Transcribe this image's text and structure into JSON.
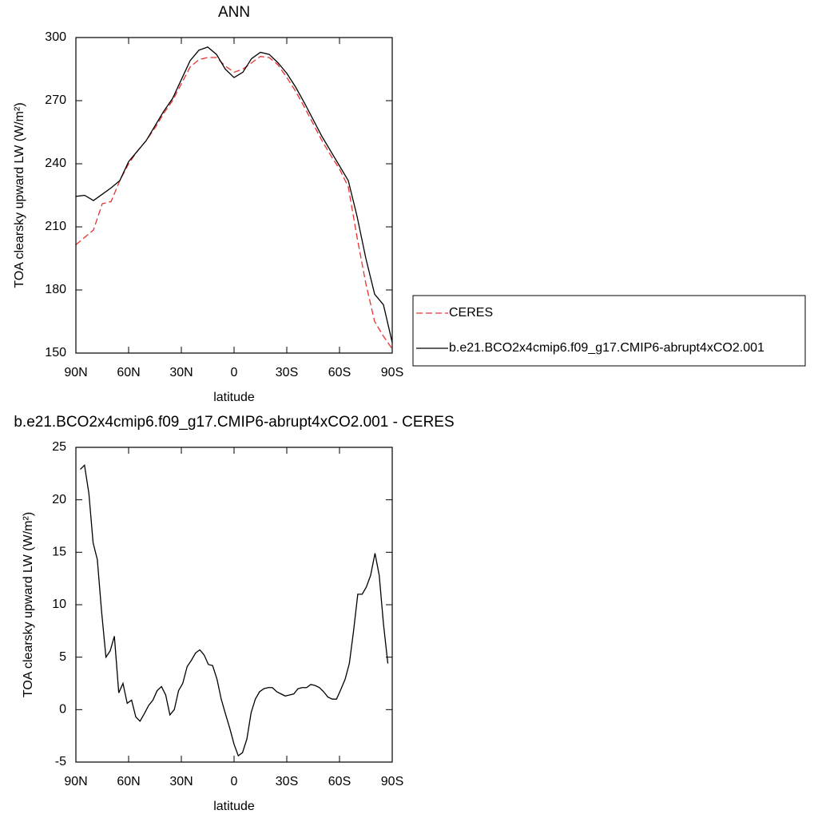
{
  "chart_data": [
    {
      "type": "line",
      "title": "ANN",
      "xlabel": "latitude",
      "ylabel": "TOA clearsky upward LW (W/m²)",
      "xlim": [
        90,
        -90
      ],
      "xticks": [
        {
          "value": 90,
          "label": "90N"
        },
        {
          "value": 60,
          "label": "60N"
        },
        {
          "value": 30,
          "label": "30N"
        },
        0,
        {
          "value": -30,
          "label": "30S"
        },
        {
          "value": -60,
          "label": "60S"
        },
        {
          "value": -90,
          "label": "90S"
        }
      ],
      "ylim": [
        150,
        300
      ],
      "yticks": [
        150,
        180,
        210,
        240,
        270,
        300
      ],
      "x": [
        90,
        85,
        80,
        75,
        70,
        65,
        60,
        55,
        50,
        45,
        40,
        35,
        30,
        25,
        20,
        15,
        10,
        5,
        0,
        -5,
        -10,
        -15,
        -20,
        -25,
        -30,
        -35,
        -40,
        -45,
        -50,
        -55,
        -60,
        -65,
        -70,
        -75,
        -80,
        -85,
        -90
      ],
      "legend": "right",
      "series": [
        {
          "name": "CERES",
          "color": "#e8312f",
          "dashed": true,
          "values": [
            201.5,
            205,
            208.5,
            221,
            222,
            232,
            240,
            246,
            251,
            257,
            264,
            270,
            278,
            286,
            289.5,
            290.5,
            290.5,
            286.5,
            283.5,
            285,
            288,
            291,
            290.5,
            287,
            281,
            274.5,
            267,
            259,
            251,
            244,
            237.5,
            229,
            205,
            183,
            165,
            158,
            152
          ]
        },
        {
          "name": "b.e21.BCO2x4cmip6.f09_g17.CMIP6-abrupt4xCO2.001",
          "color": "#000000",
          "dashed": false,
          "values": [
            224.5,
            225,
            222.5,
            225.5,
            228.5,
            232,
            241,
            246,
            251,
            258,
            265,
            271,
            280,
            289,
            294,
            295.5,
            292,
            285,
            281,
            283.5,
            290,
            293,
            292,
            288,
            283,
            276.5,
            269,
            261,
            253,
            246,
            239,
            232,
            215,
            195,
            178,
            173,
            155
          ]
        }
      ]
    },
    {
      "type": "line",
      "title": "b.e21.BCO2x4cmip6.f09_g17.CMIP6-abrupt4xCO2.001 - CERES",
      "xlabel": "latitude",
      "ylabel": "TOA clearsky upward LW (W/m²)",
      "xlim": [
        90,
        -90
      ],
      "xticks": [
        {
          "value": 90,
          "label": "90N"
        },
        {
          "value": 60,
          "label": "60N"
        },
        {
          "value": 30,
          "label": "30N"
        },
        0,
        {
          "value": -30,
          "label": "30S"
        },
        {
          "value": -60,
          "label": "60S"
        },
        {
          "value": -90,
          "label": "90S"
        }
      ],
      "ylim": [
        -5,
        25
      ],
      "yticks": [
        -5,
        0,
        5,
        10,
        15,
        20,
        25
      ],
      "x": [
        87.5,
        85.1,
        82.6,
        80.2,
        77.8,
        75.4,
        72.9,
        70.5,
        68.1,
        65.6,
        63.2,
        60.8,
        58.3,
        55.9,
        53.5,
        51.1,
        48.6,
        46.2,
        43.8,
        41.3,
        38.9,
        36.5,
        34.0,
        31.6,
        29.2,
        26.7,
        24.3,
        21.9,
        19.5,
        17.0,
        14.6,
        12.2,
        9.7,
        7.3,
        4.9,
        2.4,
        0.0,
        -2.4,
        -4.8,
        -7.3,
        -9.7,
        -12.1,
        -14.5,
        -17.0,
        -19.4,
        -21.8,
        -24.3,
        -26.7,
        -29.1,
        -31.6,
        -34.0,
        -36.4,
        -38.8,
        -41.3,
        -43.7,
        -46.1,
        -48.6,
        -51.0,
        -53.4,
        -55.9,
        -58.3,
        -60.7,
        -63.2,
        -65.6,
        -68.0,
        -70.4,
        -72.9,
        -75.3,
        -77.7,
        -80.2,
        -82.6,
        -85.0,
        -87.5
      ],
      "color": "#000000",
      "values": [
        22.9,
        23.3,
        20.6,
        15.9,
        14.3,
        9.4,
        5.0,
        5.6,
        7,
        1.6,
        2.5,
        0.6,
        0.9,
        -0.7,
        -1.1,
        -0.4,
        0.4,
        0.9,
        1.8,
        2.2,
        1.4,
        -0.5,
        0.0,
        1.8,
        2.5,
        4.1,
        4.7,
        5.4,
        5.7,
        5.2,
        4.3,
        4.2,
        2.9,
        1.0,
        -0.4,
        -1.8,
        -3.3,
        -4.4,
        -4.1,
        -2.8,
        -0.3,
        1.0,
        1.7,
        2.0,
        2.1,
        2.1,
        1.7,
        1.5,
        1.3,
        1.4,
        1.5,
        2.0,
        2.1,
        2.1,
        2.4,
        2.3,
        2.1,
        1.7,
        1.2,
        1.0,
        1.0,
        1.9,
        2.9,
        4.4,
        7.5,
        11,
        11,
        11.7,
        12.8,
        14.9,
        12.8,
        8.2,
        4.4
      ]
    }
  ]
}
